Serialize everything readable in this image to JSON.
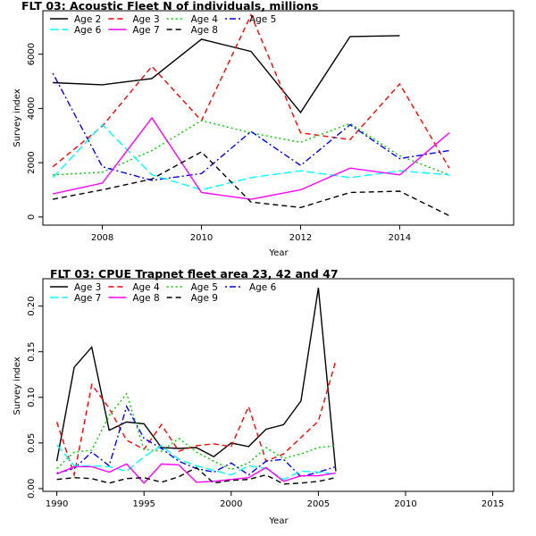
{
  "chart_data": [
    {
      "type": "line",
      "title": "FLT 03: Acoustic Fleet   N of individuals, millions",
      "xlabel": "Year",
      "ylabel": "Survey index",
      "xlim": [
        2006.8,
        2016.3
      ],
      "ylim": [
        -300,
        7600
      ],
      "xticks": [
        "2008",
        "2010",
        "2012",
        "2014"
      ],
      "xtick_values": [
        2008,
        2010,
        2012,
        2014
      ],
      "yticks": [
        "0",
        "2000",
        "4000",
        "6000"
      ],
      "ytick_values": [
        0,
        2000,
        4000,
        6000
      ],
      "grid": false,
      "legend_position": "top-left",
      "series": [
        {
          "name": "Age 2",
          "color": "#000000",
          "dash": "solid",
          "x": [
            2007,
            2008,
            2009,
            2010,
            2011,
            2012,
            2013,
            2014
          ],
          "values": [
            4950,
            4870,
            5100,
            6550,
            6100,
            3850,
            6650,
            6680
          ]
        },
        {
          "name": "Age 3",
          "color": "#ff0000",
          "dash": "dashed",
          "x": [
            2007,
            2008,
            2009,
            2010,
            2011,
            2012,
            2013,
            2014,
            2015
          ],
          "values": [
            1850,
            3350,
            5550,
            3550,
            7450,
            3100,
            2850,
            4900,
            1800
          ]
        },
        {
          "name": "Age 4",
          "color": "#00cd00",
          "dash": "dotted",
          "x": [
            2007,
            2008,
            2009,
            2010,
            2011,
            2012,
            2013,
            2014,
            2015
          ],
          "values": [
            1550,
            1650,
            2450,
            3550,
            3100,
            2750,
            3450,
            2250,
            1550
          ]
        },
        {
          "name": "Age 5",
          "color": "#0000ff",
          "dash": "dotdash",
          "x": [
            2007,
            2008,
            2009,
            2010,
            2011,
            2012,
            2013,
            2014,
            2015
          ],
          "values": [
            5300,
            1850,
            1350,
            1600,
            3150,
            1900,
            3400,
            2150,
            2450
          ]
        },
        {
          "name": "Age 6",
          "color": "#00ffff",
          "dash": "longdash",
          "x": [
            2007,
            2008,
            2009,
            2010,
            2011,
            2012,
            2013,
            2014,
            2015
          ],
          "values": [
            1450,
            3400,
            1550,
            1000,
            1450,
            1700,
            1450,
            1700,
            1550
          ]
        },
        {
          "name": "Age 7",
          "color": "#ff00ff",
          "dash": "solid",
          "x": [
            2007,
            2008,
            2009,
            2010,
            2011,
            2012,
            2013,
            2014,
            2015
          ],
          "values": [
            850,
            1250,
            3650,
            900,
            650,
            1000,
            1800,
            1550,
            3100
          ]
        },
        {
          "name": "Age 8",
          "color": "#000000",
          "dash": "dashed",
          "x": [
            2007,
            2008,
            2009,
            2010,
            2011,
            2012,
            2013,
            2014,
            2015
          ],
          "values": [
            650,
            1000,
            1400,
            2400,
            550,
            350,
            900,
            950,
            50
          ]
        }
      ]
    },
    {
      "type": "line",
      "title": "FLT 03: CPUE Trapnet fleet area 23, 42 and 47",
      "xlabel": "Year",
      "ylabel": "Survey index",
      "xlim": [
        1989.2,
        2016.2
      ],
      "ylim": [
        -0.003,
        0.23
      ],
      "xticks": [
        "1990",
        "1995",
        "2000",
        "2005",
        "2010",
        "2015"
      ],
      "xtick_values": [
        1990,
        1995,
        2000,
        2005,
        2010,
        2015
      ],
      "yticks": [
        "0.00",
        "0.05",
        "0.10",
        "0.15",
        "0.20"
      ],
      "ytick_values": [
        0,
        0.05,
        0.1,
        0.15,
        0.2
      ],
      "grid": false,
      "legend_position": "top-left",
      "series": [
        {
          "name": "Age 3",
          "color": "#000000",
          "dash": "solid",
          "x": [
            1990,
            1991,
            1992,
            1993,
            1994,
            1995,
            1996,
            1997,
            1998,
            1999,
            2000,
            2001,
            2002,
            2003,
            2004,
            2005,
            2006
          ],
          "values": [
            0.03,
            0.133,
            0.155,
            0.064,
            0.073,
            0.071,
            0.045,
            0.044,
            0.045,
            0.035,
            0.05,
            0.046,
            0.065,
            0.07,
            0.096,
            0.22,
            0.019
          ]
        },
        {
          "name": "Age 4",
          "color": "#ff0000",
          "dash": "dashed",
          "x": [
            1990,
            1991,
            1992,
            1993,
            1994,
            1995,
            1996,
            1997,
            1998,
            1999,
            2000,
            2001,
            2002,
            2003,
            2004,
            2005,
            2006
          ],
          "values": [
            0.073,
            0.015,
            0.114,
            0.088,
            0.053,
            0.043,
            0.07,
            0.041,
            0.047,
            0.049,
            0.046,
            0.09,
            0.03,
            0.038,
            0.056,
            0.074,
            0.14
          ]
        },
        {
          "name": "Age 5",
          "color": "#00cd00",
          "dash": "dotted",
          "x": [
            1990,
            1991,
            1992,
            1993,
            1994,
            1995,
            1996,
            1997,
            1998,
            1999,
            2000,
            2001,
            2002,
            2003,
            2004,
            2005,
            2006
          ],
          "values": [
            0.022,
            0.04,
            0.042,
            0.08,
            0.104,
            0.043,
            0.041,
            0.055,
            0.04,
            0.03,
            0.021,
            0.028,
            0.045,
            0.033,
            0.038,
            0.045,
            0.047
          ]
        },
        {
          "name": "Age 6",
          "color": "#0000ff",
          "dash": "dotdash",
          "x": [
            1990,
            1991,
            1992,
            1993,
            1994,
            1995,
            1996,
            1997,
            1998,
            1999,
            2000,
            2001,
            2002,
            2003,
            2004,
            2005,
            2006
          ],
          "values": [
            0.017,
            0.022,
            0.04,
            0.025,
            0.09,
            0.055,
            0.044,
            0.03,
            0.022,
            0.018,
            0.028,
            0.015,
            0.03,
            0.032,
            0.013,
            0.018,
            0.024
          ]
        },
        {
          "name": "Age 7",
          "color": "#00ffff",
          "dash": "longdash",
          "x": [
            1990,
            1991,
            1992,
            1993,
            1994,
            1995,
            1996,
            1997,
            1998,
            1999,
            2000,
            2001,
            2002,
            2003,
            2004,
            2005,
            2006
          ],
          "values": [
            0.048,
            0.025,
            0.025,
            0.024,
            0.019,
            0.035,
            0.047,
            0.032,
            0.025,
            0.02,
            0.015,
            0.025,
            0.022,
            0.01,
            0.019,
            0.018,
            0.016
          ]
        },
        {
          "name": "Age 8",
          "color": "#ff00ff",
          "dash": "solid",
          "x": [
            1990,
            1991,
            1992,
            1993,
            1994,
            1995,
            1996,
            1997,
            1998,
            1999,
            2000,
            2001,
            2002,
            2003,
            2004,
            2005,
            2006
          ],
          "values": [
            0.016,
            0.024,
            0.024,
            0.018,
            0.027,
            0.006,
            0.027,
            0.026,
            0.007,
            0.008,
            0.01,
            0.012,
            0.023,
            0.008,
            0.014,
            0.014,
            0.017
          ]
        },
        {
          "name": "Age 9",
          "color": "#000000",
          "dash": "dashed",
          "x": [
            1990,
            1991,
            1992,
            1993,
            1994,
            1995,
            1996,
            1997,
            1998,
            1999,
            2000,
            2001,
            2002,
            2003,
            2004,
            2005,
            2006
          ],
          "values": [
            0.01,
            0.012,
            0.011,
            0.006,
            0.011,
            0.012,
            0.007,
            0.013,
            0.023,
            0.006,
            0.009,
            0.01,
            0.015,
            0.005,
            0.006,
            0.008,
            0.012
          ]
        }
      ]
    }
  ]
}
